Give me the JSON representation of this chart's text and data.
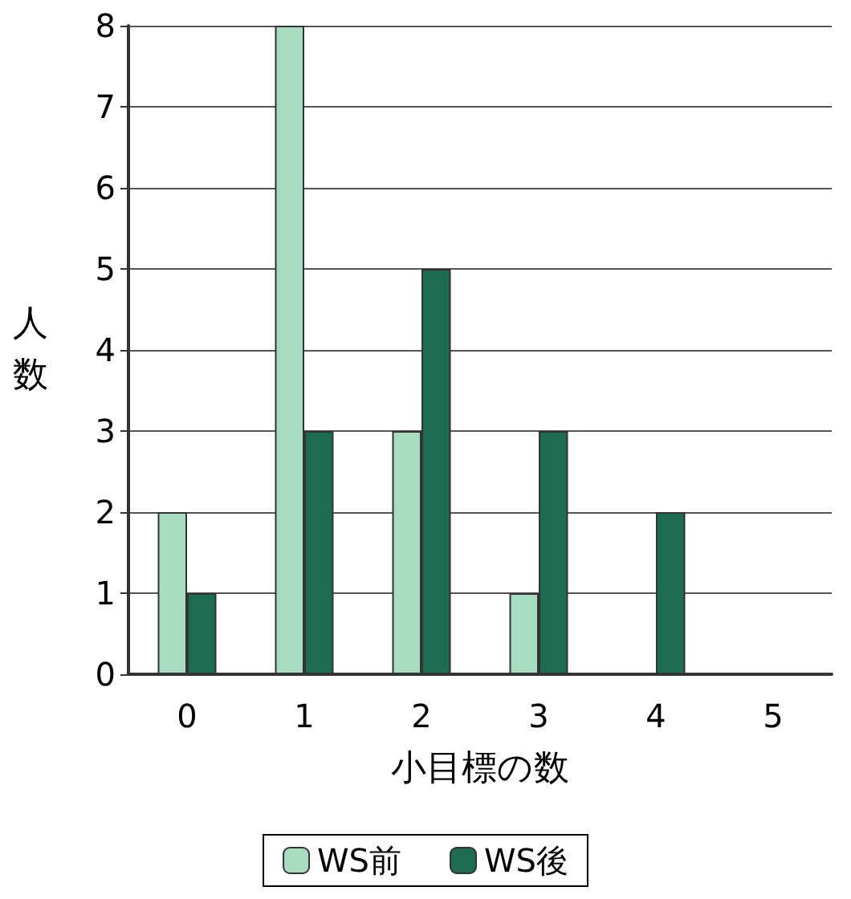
{
  "chart_data": {
    "type": "bar",
    "xlabel": "小目標の数",
    "ylabel": "人数",
    "categories": [
      "0",
      "1",
      "2",
      "3",
      "4",
      "5"
    ],
    "series": [
      {
        "name": "WS前",
        "color": "#a8dcc0",
        "values": [
          2,
          8,
          3,
          1,
          0,
          0
        ]
      },
      {
        "name": "WS後",
        "color": "#1d6b50",
        "values": [
          1,
          3,
          5,
          3,
          2,
          0
        ]
      }
    ],
    "ylim": [
      0,
      8
    ],
    "yticks": [
      0,
      1,
      2,
      3,
      4,
      5,
      6,
      7,
      8
    ],
    "grid": "y",
    "legend": "bottom"
  }
}
